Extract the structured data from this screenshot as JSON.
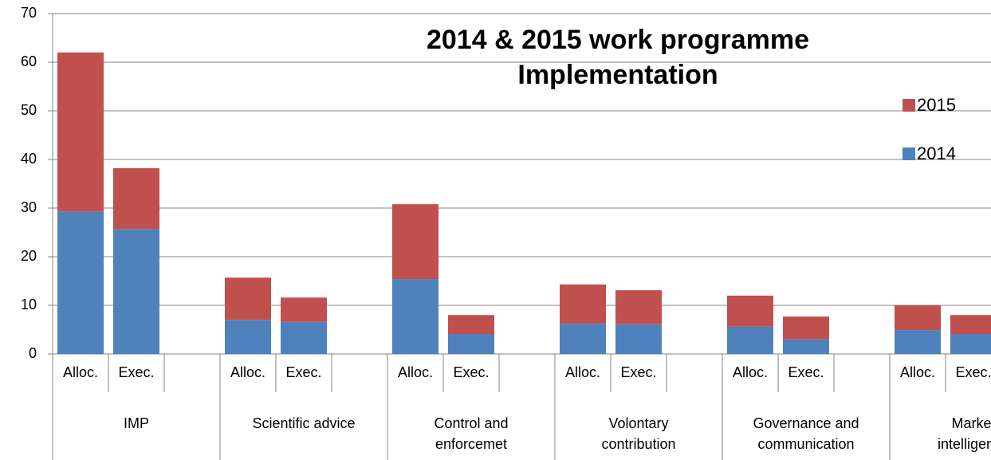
{
  "chart_data": {
    "type": "stacked_bar",
    "title": "2014 & 2015 work programme\nImplementation",
    "categories": [
      "Alloc.",
      "Exec.",
      null,
      "Alloc.",
      "Exec.",
      null,
      "Alloc.",
      "Exec.",
      null,
      "Alloc.",
      "Exec.",
      null,
      "Alloc.",
      "Exec.",
      null,
      "Alloc.",
      "Exec.",
      null
    ],
    "groups": [
      "IMP",
      "Scientific advice",
      "Control and\nenforcemet",
      "Volontary\ncontribution",
      "Governance and\ncommunication",
      "Market\nintelligence"
    ],
    "series": [
      {
        "name": "2014",
        "color": "#4f81bd",
        "values": [
          29.3,
          25.7,
          null,
          7.0,
          6.6,
          null,
          15.4,
          4.1,
          null,
          6.2,
          6.1,
          null,
          5.6,
          3.0,
          null,
          4.9,
          4.1,
          null
        ]
      },
      {
        "name": "2015",
        "color": "#c0504d",
        "values": [
          32.7,
          12.5,
          null,
          8.7,
          5.0,
          null,
          15.4,
          3.9,
          null,
          8.1,
          7.0,
          null,
          6.4,
          4.7,
          null,
          5.1,
          3.9,
          null
        ]
      }
    ],
    "ylim": [
      0,
      70
    ],
    "yticks": [
      0,
      10,
      20,
      30,
      40,
      50,
      60,
      70
    ],
    "grid": true,
    "legend": "right"
  }
}
